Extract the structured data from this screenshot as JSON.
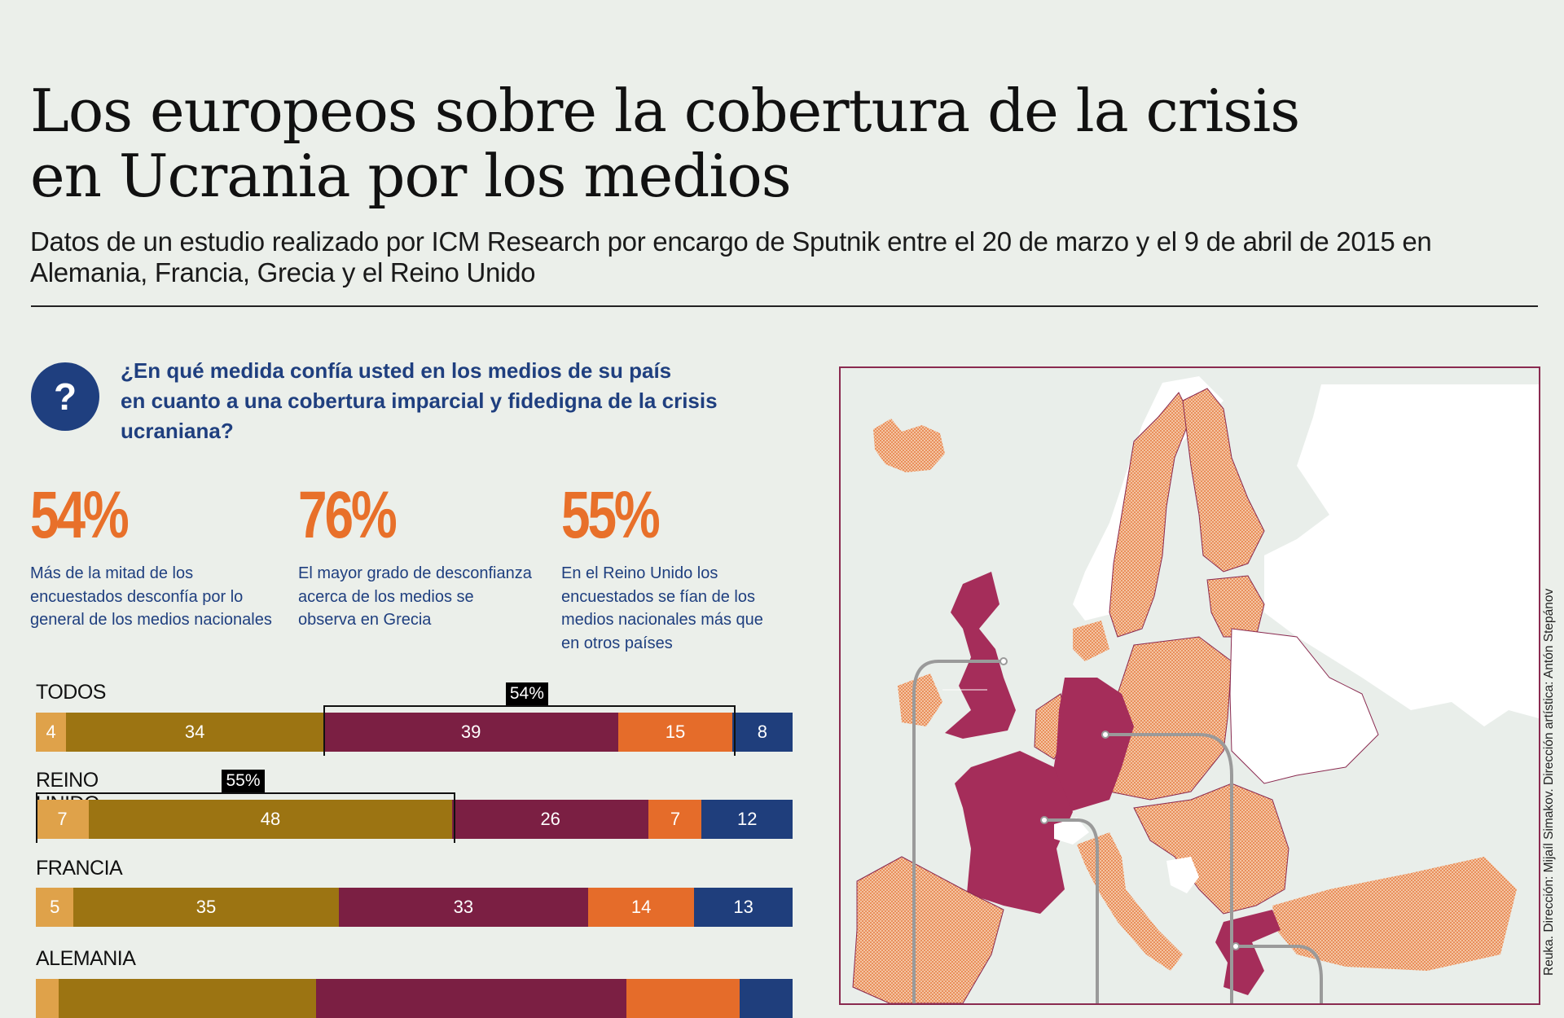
{
  "header": {
    "title_line1": "Los europeos sobre la cobertura de la crisis",
    "title_line2": "en Ucrania por los medios",
    "subtitle": "Datos de un estudio realizado por ICM Research por encargo de Sputnik entre el 20 de marzo y el 9 de abril de 2015 en Alemania, Francia, Grecia y el Reino Unido"
  },
  "question": {
    "icon": "question-mark-icon",
    "text_line1": "¿En qué medida confía usted en los medios de su país",
    "text_line2": "en cuanto a una cobertura imparcial y fidedigna de la crisis",
    "text_line3": "ucraniana?"
  },
  "stats": [
    {
      "value": "54%",
      "description": "Más de la mitad de los encuestados desconfía por lo general de los medios nacionales"
    },
    {
      "value": "76%",
      "description": "El mayor grado de desconfianza acerca de los medios se observa en Grecia"
    },
    {
      "value": "55%",
      "description": "En el Reino Unido los encuestados se fían de los medios nacionales más que en otros países"
    }
  ],
  "colors": {
    "trust_fully": "#dfa24a",
    "trust_somewhat": "#9c7412",
    "distrust_somewhat": "#7b1f43",
    "distrust_fully": "#e56c2a",
    "no_answer": "#1f3e7c",
    "accent_orange": "#e8702a",
    "accent_blue": "#1f3f7f",
    "map_highlight": "#a52d5a",
    "map_eu": "#eaa27a",
    "map_frame": "#8a2a50"
  },
  "chart_data": {
    "type": "bar",
    "orientation": "horizontal",
    "stacked": true,
    "percent_stacked": true,
    "categories": [
      "TODOS",
      "REINO UNIDO",
      "FRANCIA",
      "ALEMANIA"
    ],
    "series": [
      {
        "name": "segment_1",
        "color": "#dfa24a",
        "values": [
          4,
          7,
          5,
          3
        ]
      },
      {
        "name": "segment_2",
        "color": "#9c7412",
        "values": [
          34,
          48,
          35,
          34
        ]
      },
      {
        "name": "segment_3",
        "color": "#7b1f43",
        "values": [
          39,
          26,
          33,
          41
        ]
      },
      {
        "name": "segment_4",
        "color": "#e56c2a",
        "values": [
          15,
          7,
          14,
          15
        ]
      },
      {
        "name": "segment_5",
        "color": "#1f3e7c",
        "values": [
          8,
          12,
          13,
          7
        ]
      }
    ],
    "labels_visible": [
      true,
      true,
      true,
      false
    ],
    "annotations": [
      {
        "category": "TODOS",
        "label": "54%",
        "spans_series": [
          2,
          3
        ]
      },
      {
        "category": "REINO UNIDO",
        "label": "55%",
        "spans_series": [
          0,
          1
        ]
      }
    ],
    "xlim": [
      0,
      100
    ],
    "title": "",
    "xlabel": "",
    "ylabel": ""
  },
  "map": {
    "highlighted_countries": [
      "Reino Unido",
      "Francia",
      "Alemania",
      "Grecia"
    ],
    "credit": "Reuka. Dirección: Mijaíl Simakov. Dirección artística: Antón Stepánov"
  }
}
